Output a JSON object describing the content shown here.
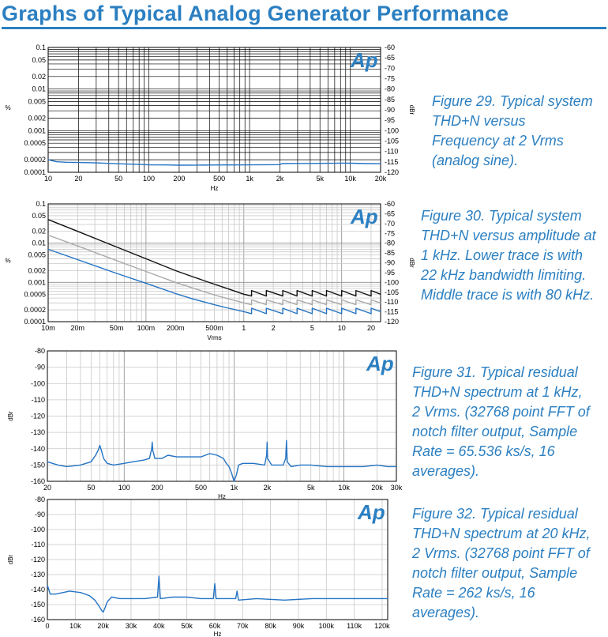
{
  "page": {
    "title": "Graphs of Typical Analog Generator Performance",
    "accent_color": "#2b7fc1",
    "trace_color": "#2474c4"
  },
  "captions": [
    [
      "Figure 29. Typical system",
      "THD+N versus",
      "Frequency at 2 Vrms",
      "(analog sine)."
    ],
    [
      "Figure 30. Typical system",
      "THD+N versus amplitude at",
      "1 kHz. Lower trace is with",
      "22 kHz bandwidth limiting.",
      "Middle trace is with 80 kHz."
    ],
    [
      "Figure 31. Typical residual",
      "THD+N spectrum at 1 kHz,",
      "2 Vrms. (32768 point FFT of",
      "notch filter output, Sample",
      "Rate = 65.536 ks/s, 16",
      "averages)."
    ],
    [
      "Figure 32. Typical residual",
      "THD+N spectrum at 20 kHz,",
      "2 Vrms. (32768 point FFT of",
      "notch filter output, Sample",
      "Rate = 262 ks/s, 16",
      "averages)."
    ]
  ],
  "chart_data": [
    {
      "type": "line",
      "logo": "Ap",
      "xlabel": "Hz",
      "ylabel": "%",
      "y2label": "dBr",
      "x_scale": "log",
      "y_scale": "log",
      "xlim": [
        10,
        20000
      ],
      "ylim": [
        0.0001,
        0.1
      ],
      "y2lim": [
        -120,
        -60
      ],
      "grid": "dense-black",
      "x_ticks": [
        {
          "v": 10,
          "label": "10"
        },
        {
          "v": 20,
          "label": "20"
        },
        {
          "v": 50,
          "label": "50"
        },
        {
          "v": 100,
          "label": "100"
        },
        {
          "v": 200,
          "label": "200"
        },
        {
          "v": 500,
          "label": "500"
        },
        {
          "v": 1000,
          "label": "1k"
        },
        {
          "v": 2000,
          "label": "2k"
        },
        {
          "v": 5000,
          "label": "5k"
        },
        {
          "v": 10000,
          "label": "10k"
        },
        {
          "v": 20000,
          "label": "20k"
        }
      ],
      "y_ticks": [
        {
          "v": 0.1,
          "label": "0.1"
        },
        {
          "v": 0.05,
          "label": "0.05"
        },
        {
          "v": 0.02,
          "label": "0.02"
        },
        {
          "v": 0.01,
          "label": "0.01"
        },
        {
          "v": 0.005,
          "label": "0.005"
        },
        {
          "v": 0.002,
          "label": "0.002"
        },
        {
          "v": 0.001,
          "label": "0.001"
        },
        {
          "v": 0.0005,
          "label": "0.0005"
        },
        {
          "v": 0.0002,
          "label": "0.0002"
        },
        {
          "v": 0.0001,
          "label": "0.0001"
        }
      ],
      "y2_ticks": [
        -60,
        -65,
        -70,
        -75,
        -80,
        -85,
        -90,
        -95,
        -100,
        -105,
        -110,
        -115,
        -120
      ],
      "series": [
        {
          "color": "#2474c4",
          "x": [
            10,
            12,
            15,
            20,
            30,
            50,
            80,
            100,
            150,
            200,
            300,
            500,
            700,
            1000,
            1500,
            2000,
            2100,
            3000,
            5000,
            8000,
            10000,
            15000,
            20000
          ],
          "y": [
            0.0002,
            0.00018,
            0.000174,
            0.000172,
            0.000168,
            0.00016,
            0.000154,
            0.000151,
            0.00015,
            0.000148,
            0.000149,
            0.00015,
            0.00015,
            0.000151,
            0.000152,
            0.000153,
            0.000162,
            0.000163,
            0.000164,
            0.000166,
            0.000165,
            0.000162,
            0.00016
          ]
        }
      ]
    },
    {
      "type": "line",
      "logo": "Ap",
      "xlabel": "Vrms",
      "ylabel": "%",
      "y2label": "dBr",
      "x_scale": "log",
      "y_scale": "log",
      "xlim": [
        0.01,
        25
      ],
      "ylim": [
        0.0001,
        0.1
      ],
      "y2lim": [
        -120,
        -60
      ],
      "grid": "light-gray",
      "x_ticks": [
        {
          "v": 0.01,
          "label": "10m"
        },
        {
          "v": 0.02,
          "label": "20m"
        },
        {
          "v": 0.05,
          "label": "50m"
        },
        {
          "v": 0.1,
          "label": "100m"
        },
        {
          "v": 0.2,
          "label": "200m"
        },
        {
          "v": 0.5,
          "label": "500m"
        },
        {
          "v": 1,
          "label": "1"
        },
        {
          "v": 2,
          "label": "2"
        },
        {
          "v": 5,
          "label": "5"
        },
        {
          "v": 10,
          "label": "10"
        },
        {
          "v": 20,
          "label": "20"
        }
      ],
      "y_ticks": [
        {
          "v": 0.1,
          "label": "0.1"
        },
        {
          "v": 0.05,
          "label": "0.05"
        },
        {
          "v": 0.02,
          "label": "0.02"
        },
        {
          "v": 0.01,
          "label": "0.01"
        },
        {
          "v": 0.005,
          "label": "0.005"
        },
        {
          "v": 0.002,
          "label": "0.002"
        },
        {
          "v": 0.001,
          "label": "0.001"
        },
        {
          "v": 0.0005,
          "label": "0.0005"
        },
        {
          "v": 0.0002,
          "label": "0.0002"
        },
        {
          "v": 0.0001,
          "label": "0.0001"
        }
      ],
      "y2_ticks": [
        -60,
        -65,
        -70,
        -75,
        -80,
        -85,
        -90,
        -95,
        -100,
        -105,
        -110,
        -115,
        -120
      ],
      "series": [
        {
          "color": "#111111",
          "x": [
            0.01,
            0.02,
            0.05,
            0.1,
            0.2,
            0.3,
            0.5,
            0.7,
            1.0,
            1.2,
            1.2,
            1.7,
            1.7,
            2.5,
            2.5,
            3.5,
            3.5,
            5.0,
            5.0,
            7.0,
            7.0,
            10.0,
            10.0,
            14.0,
            14.0,
            20.0,
            20.0,
            25.0
          ],
          "y": [
            0.04,
            0.02,
            0.008,
            0.004,
            0.002,
            0.0014,
            0.0009,
            0.00068,
            0.0005,
            0.00045,
            0.00062,
            0.00045,
            0.00062,
            0.00045,
            0.00062,
            0.00045,
            0.00062,
            0.00045,
            0.00062,
            0.00045,
            0.00062,
            0.00045,
            0.00062,
            0.00045,
            0.00062,
            0.00045,
            0.00062,
            0.0005
          ]
        },
        {
          "color": "#aaaaaa",
          "x": [
            0.01,
            0.02,
            0.05,
            0.1,
            0.2,
            0.3,
            0.5,
            0.7,
            1.0,
            1.2,
            1.2,
            1.7,
            1.7,
            2.5,
            2.5,
            3.5,
            3.5,
            5.0,
            5.0,
            7.0,
            7.0,
            10.0,
            10.0,
            14.0,
            14.0,
            20.0,
            20.0,
            25.0
          ],
          "y": [
            0.016,
            0.0085,
            0.0036,
            0.0019,
            0.001,
            0.00072,
            0.00048,
            0.00038,
            0.0003,
            0.00027,
            0.00036,
            0.00027,
            0.00036,
            0.00027,
            0.00036,
            0.00027,
            0.00036,
            0.00027,
            0.00036,
            0.00027,
            0.00036,
            0.00027,
            0.00036,
            0.00027,
            0.00036,
            0.00027,
            0.00036,
            0.0003
          ]
        },
        {
          "color": "#2474c4",
          "x": [
            0.01,
            0.02,
            0.05,
            0.1,
            0.2,
            0.3,
            0.5,
            0.7,
            1.0,
            1.2,
            1.2,
            1.7,
            1.7,
            2.5,
            2.5,
            3.5,
            3.5,
            5.0,
            5.0,
            7.0,
            7.0,
            10.0,
            10.0,
            14.0,
            14.0,
            20.0,
            20.0,
            25.0
          ],
          "y": [
            0.007,
            0.0038,
            0.0017,
            0.00095,
            0.00052,
            0.00038,
            0.00027,
            0.00022,
            0.00018,
            0.00016,
            0.00022,
            0.00016,
            0.00022,
            0.00016,
            0.00022,
            0.00016,
            0.00022,
            0.00016,
            0.00022,
            0.00016,
            0.00022,
            0.00016,
            0.00022,
            0.00016,
            0.00022,
            0.00016,
            0.00022,
            0.00018
          ]
        }
      ]
    },
    {
      "type": "line",
      "logo": "Ap",
      "xlabel": "Hz",
      "ylabel": "dBr",
      "x_scale": "log",
      "y_scale": "linear",
      "xlim": [
        20,
        30000
      ],
      "ylim": [
        -160,
        -80
      ],
      "grid": "light-gray",
      "x_ticks": [
        {
          "v": 20,
          "label": "20"
        },
        {
          "v": 50,
          "label": "50"
        },
        {
          "v": 100,
          "label": "100"
        },
        {
          "v": 200,
          "label": "200"
        },
        {
          "v": 500,
          "label": "500"
        },
        {
          "v": 1000,
          "label": "1k"
        },
        {
          "v": 2000,
          "label": "2k"
        },
        {
          "v": 5000,
          "label": "5k"
        },
        {
          "v": 10000,
          "label": "10k"
        },
        {
          "v": 20000,
          "label": "20k"
        },
        {
          "v": 30000,
          "label": "30k"
        }
      ],
      "y_ticks": [
        {
          "v": -80,
          "label": "-80"
        },
        {
          "v": -90,
          "label": "-90"
        },
        {
          "v": -100,
          "label": "-100"
        },
        {
          "v": -110,
          "label": "-110"
        },
        {
          "v": -120,
          "label": "-120"
        },
        {
          "v": -130,
          "label": "-130"
        },
        {
          "v": -140,
          "label": "-140"
        },
        {
          "v": -150,
          "label": "-150"
        },
        {
          "v": -160,
          "label": "-160"
        }
      ],
      "series": [
        {
          "color": "#2474c4",
          "x": [
            20,
            25,
            30,
            40,
            50,
            55,
            58,
            60,
            62,
            65,
            70,
            80,
            100,
            120,
            150,
            170,
            178,
            180,
            182,
            190,
            220,
            250,
            300,
            400,
            500,
            600,
            700,
            800,
            850,
            900,
            950,
            1000,
            1050,
            1100,
            1200,
            1500,
            1900,
            1980,
            2000,
            2020,
            2200,
            2800,
            2950,
            3000,
            3050,
            3300,
            4000,
            5000,
            7000,
            10000,
            15000,
            20000,
            25000,
            30000
          ],
          "y": [
            -148,
            -150,
            -151,
            -150,
            -148,
            -144,
            -141,
            -138,
            -141,
            -146,
            -149,
            -150,
            -149,
            -148,
            -147,
            -146,
            -140,
            -136,
            -141,
            -146,
            -146,
            -144,
            -145,
            -145,
            -145,
            -143,
            -144,
            -146,
            -149,
            -151,
            -155,
            -160,
            -156,
            -150,
            -149,
            -149,
            -150,
            -144,
            -136,
            -146,
            -150,
            -150,
            -146,
            -135,
            -148,
            -151,
            -150,
            -150,
            -151,
            -151,
            -151,
            -150,
            -151,
            -151
          ]
        }
      ]
    },
    {
      "type": "line",
      "logo": "Ap",
      "xlabel": "Hz",
      "ylabel": "dBr",
      "x_scale": "linear",
      "y_scale": "linear",
      "xlim": [
        0,
        122000
      ],
      "ylim": [
        -160,
        -80
      ],
      "grid": "light-gray",
      "x_ticks": [
        {
          "v": 0,
          "label": "0"
        },
        {
          "v": 10000,
          "label": "10k"
        },
        {
          "v": 20000,
          "label": "20k"
        },
        {
          "v": 30000,
          "label": "30k"
        },
        {
          "v": 40000,
          "label": "40k"
        },
        {
          "v": 50000,
          "label": "50k"
        },
        {
          "v": 60000,
          "label": "60k"
        },
        {
          "v": 70000,
          "label": "70k"
        },
        {
          "v": 80000,
          "label": "80k"
        },
        {
          "v": 90000,
          "label": "90k"
        },
        {
          "v": 100000,
          "label": "100k"
        },
        {
          "v": 110000,
          "label": "110k"
        },
        {
          "v": 120000,
          "label": "120k"
        }
      ],
      "y_ticks": [
        {
          "v": -80,
          "label": "-80"
        },
        {
          "v": -90,
          "label": "-90"
        },
        {
          "v": -100,
          "label": "-100"
        },
        {
          "v": -110,
          "label": "-110"
        },
        {
          "v": -120,
          "label": "-120"
        },
        {
          "v": -130,
          "label": "-130"
        },
        {
          "v": -140,
          "label": "-140"
        },
        {
          "v": -150,
          "label": "-150"
        },
        {
          "v": -160,
          "label": "-160"
        }
      ],
      "series": [
        {
          "color": "#2474c4",
          "x": [
            0,
            500,
            1000,
            3000,
            8000,
            12000,
            15000,
            17000,
            18500,
            19500,
            20000,
            20500,
            21500,
            23000,
            26000,
            30000,
            35000,
            39500,
            40000,
            40500,
            45000,
            50000,
            55000,
            59500,
            60000,
            60500,
            65000,
            67500,
            68000,
            68500,
            75000,
            85000,
            95000,
            105000,
            115000,
            122000
          ],
          "y": [
            -137,
            -140,
            -143,
            -143,
            -141,
            -142,
            -144,
            -147,
            -151,
            -154,
            -155,
            -153,
            -148,
            -145,
            -146,
            -146,
            -146,
            -145,
            -131,
            -146,
            -145,
            -145,
            -146,
            -146,
            -136,
            -146,
            -146,
            -146,
            -141,
            -147,
            -146,
            -147,
            -146,
            -146,
            -146,
            -146
          ]
        }
      ]
    }
  ]
}
